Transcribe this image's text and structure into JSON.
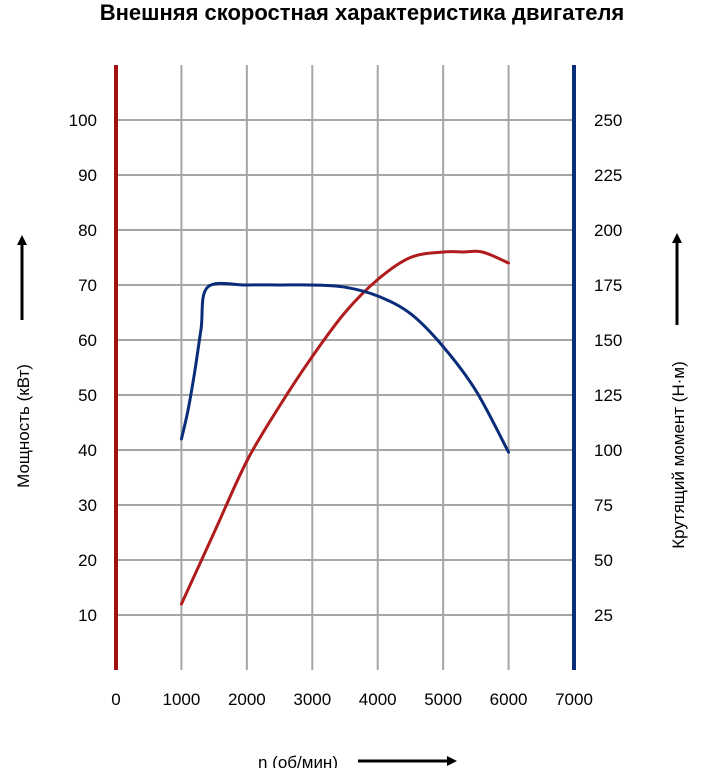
{
  "chart_data": {
    "type": "line",
    "title": "Внешняя скоростная характеристика двигателя",
    "xlabel": "n (об/мин)",
    "ylabel_left": "Мощность (кВт)",
    "ylabel_right": "Крутящий момент (Н·м)",
    "xlim": [
      0,
      7000
    ],
    "ylim_left": [
      0,
      110
    ],
    "ylim_right": [
      0,
      275
    ],
    "x_ticks": [
      "0",
      "1000",
      "2000",
      "3000",
      "4000",
      "5000",
      "6000",
      "7000"
    ],
    "y_left_ticks": [
      "10",
      "20",
      "30",
      "40",
      "50",
      "60",
      "70",
      "80",
      "90",
      "100"
    ],
    "y_right_ticks": [
      "25",
      "50",
      "75",
      "100",
      "125",
      "150",
      "175",
      "200",
      "225",
      "250"
    ],
    "grid": true,
    "colors": {
      "power": "#b01c1c",
      "torque": "#0a2d7a",
      "left_axis": "#a01010",
      "right_axis": "#0a2d7a",
      "grid": "#a6a6a6"
    },
    "series": [
      {
        "key": "power",
        "axis": "left",
        "x": [
          1000,
          1500,
          2000,
          2500,
          3000,
          3500,
          4000,
          4500,
          5000,
          5300,
          5600,
          6000
        ],
        "y": [
          12,
          25,
          38,
          48,
          57,
          65,
          71,
          75,
          76,
          76,
          76,
          74
        ]
      },
      {
        "key": "torque",
        "axis": "right",
        "x": [
          1000,
          1100,
          1200,
          1300,
          1400,
          2000,
          2500,
          3000,
          3500,
          4000,
          4500,
          5000,
          5500,
          6000
        ],
        "y": [
          105,
          118,
          135,
          155,
          174,
          175,
          175,
          175,
          174,
          170,
          162,
          147,
          127,
          99
        ]
      }
    ]
  }
}
